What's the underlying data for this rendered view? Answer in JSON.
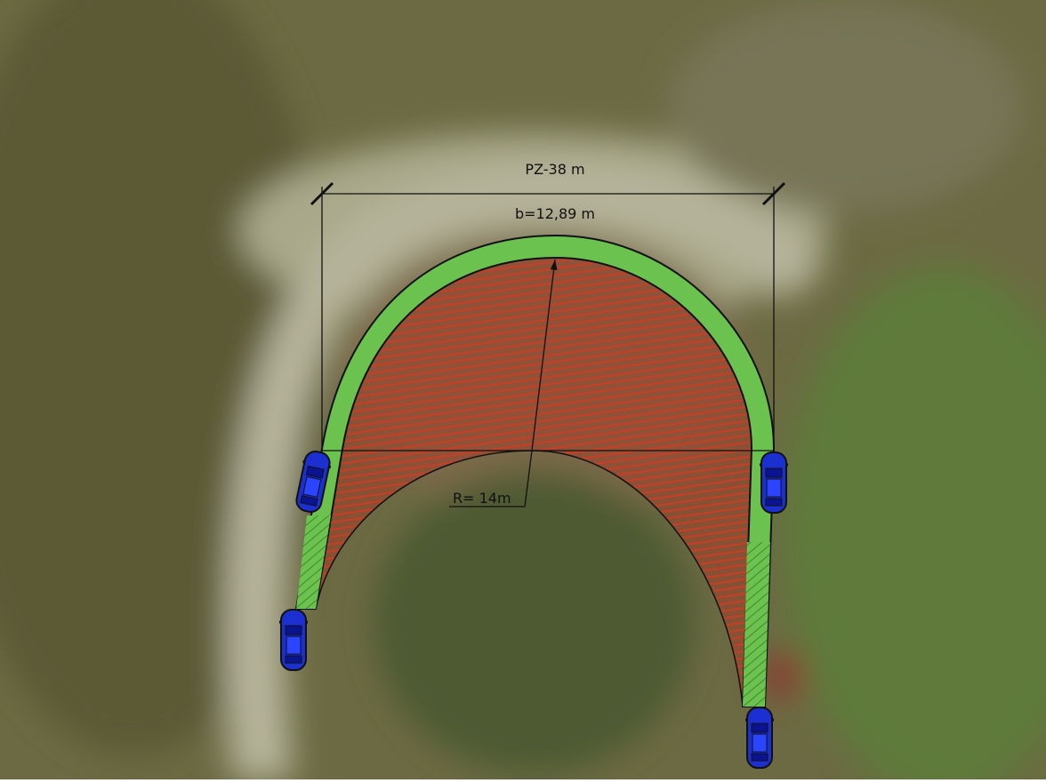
{
  "labels": {
    "dimension": "PZ-38 m",
    "width": "b=12,89 m",
    "radius": "R= 14m"
  }
}
